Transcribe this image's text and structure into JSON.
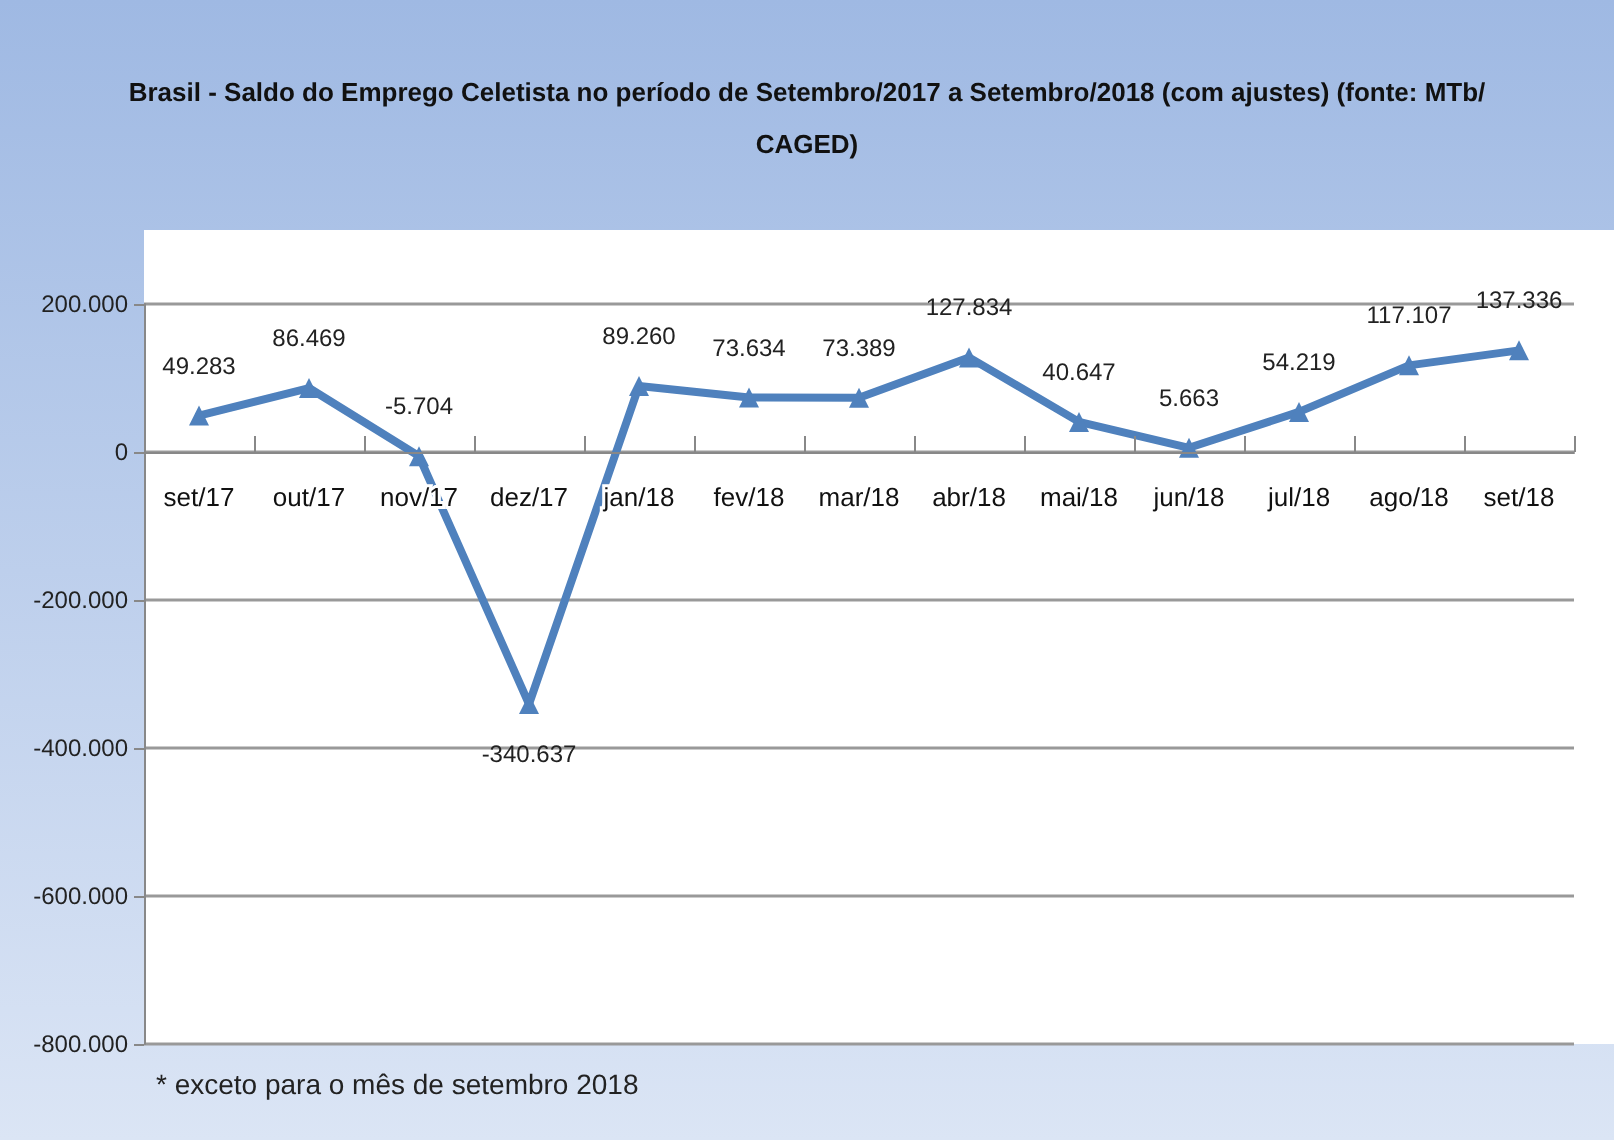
{
  "chart_data": {
    "type": "line",
    "title": "Brasil - Saldo do Emprego Celetista no período de Setembro/2017 a Setembro/2018 (com ajustes) (fonte: MTb/CAGED)",
    "categories": [
      "set/17",
      "out/17",
      "nov/17",
      "dez/17",
      "jan/18",
      "fev/18",
      "mar/18",
      "abr/18",
      "mai/18",
      "jun/18",
      "jul/18",
      "ago/18",
      "set/18"
    ],
    "series": [
      {
        "color": "#4f81bd",
        "values": [
          49283,
          86469,
          -5704,
          -340637,
          89260,
          73634,
          73389,
          127834,
          40647,
          5663,
          54219,
          117107,
          137336
        ],
        "value_labels": [
          "49.283",
          "86.469",
          "-5.704",
          "-340.637",
          "89.260",
          "73.634",
          "73.389",
          "127.834",
          "40.647",
          "5.663",
          "54.219",
          "117.107",
          "137.336"
        ]
      }
    ],
    "ylim": [
      -800000,
      200000
    ],
    "yticks": [
      {
        "value": -800000,
        "label": "-800.000"
      },
      {
        "value": -600000,
        "label": "-600.000"
      },
      {
        "value": -400000,
        "label": "-400.000"
      },
      {
        "value": -200000,
        "label": "-200.000"
      },
      {
        "value": 0,
        "label": "0"
      },
      {
        "value": 200000,
        "label": "200.000"
      }
    ],
    "grid": "y",
    "marker": "triangle",
    "line_style": "solid",
    "annotations": [
      "* exceto para o mês de setembro 2018"
    ]
  }
}
